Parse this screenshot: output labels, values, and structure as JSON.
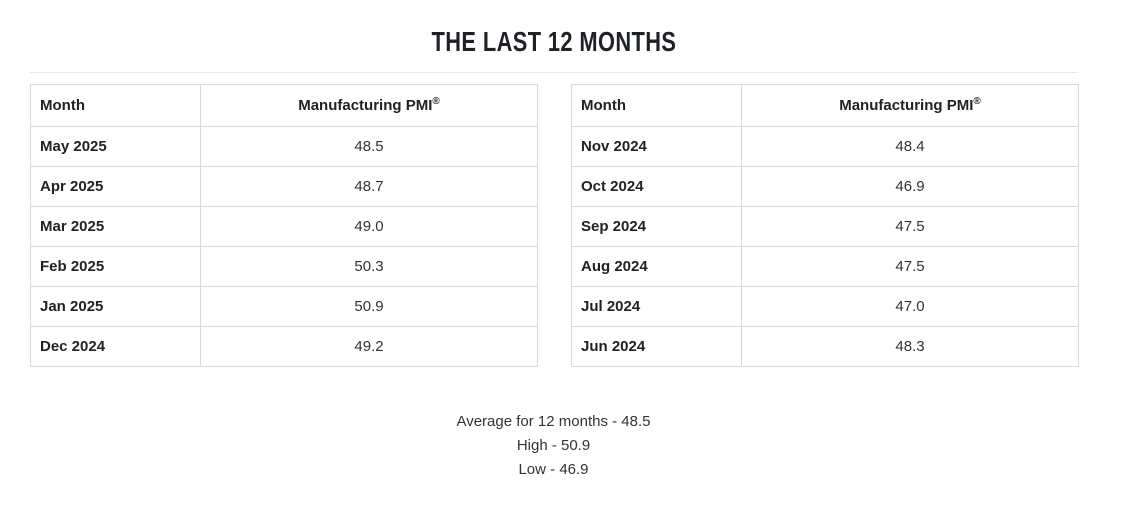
{
  "title": "THE LAST 12 MONTHS",
  "colors": {
    "text_dark": "#222222",
    "text_value": "#333333",
    "table_border": "#d9d9d9",
    "divider": "#e7e7e7"
  },
  "tables": [
    {
      "month_header": "Month",
      "pmi_header": "Manufacturing PMI",
      "pmi_header_sup": "®",
      "rows": [
        {
          "month": "May 2025",
          "value": "48.5"
        },
        {
          "month": "Apr 2025",
          "value": "48.7"
        },
        {
          "month": "Mar 2025",
          "value": "49.0"
        },
        {
          "month": "Feb 2025",
          "value": "50.3"
        },
        {
          "month": "Jan 2025",
          "value": "50.9"
        },
        {
          "month": "Dec 2024",
          "value": "49.2"
        }
      ]
    },
    {
      "month_header": "Month",
      "pmi_header": "Manufacturing PMI",
      "pmi_header_sup": "®",
      "rows": [
        {
          "month": "Nov 2024",
          "value": "48.4"
        },
        {
          "month": "Oct 2024",
          "value": "46.9"
        },
        {
          "month": "Sep 2024",
          "value": "47.5"
        },
        {
          "month": "Aug 2024",
          "value": "47.5"
        },
        {
          "month": "Jul 2024",
          "value": "47.0"
        },
        {
          "month": "Jun 2024",
          "value": "48.3"
        }
      ]
    }
  ],
  "summary": {
    "average": "Average for 12 months - 48.5",
    "high": "High - 50.9",
    "low": "Low - 46.9"
  },
  "chart_data": {
    "type": "table",
    "title": "THE LAST 12 MONTHS",
    "columns": [
      "Month",
      "Manufacturing PMI®"
    ],
    "categories": [
      "May 2025",
      "Apr 2025",
      "Mar 2025",
      "Feb 2025",
      "Jan 2025",
      "Dec 2024",
      "Nov 2024",
      "Oct 2024",
      "Sep 2024",
      "Aug 2024",
      "Jul 2024",
      "Jun 2024"
    ],
    "values": [
      48.5,
      48.7,
      49.0,
      50.3,
      50.9,
      49.2,
      48.4,
      46.9,
      47.5,
      47.5,
      47.0,
      48.3
    ],
    "average": 48.5,
    "high": 50.9,
    "low": 46.9
  }
}
